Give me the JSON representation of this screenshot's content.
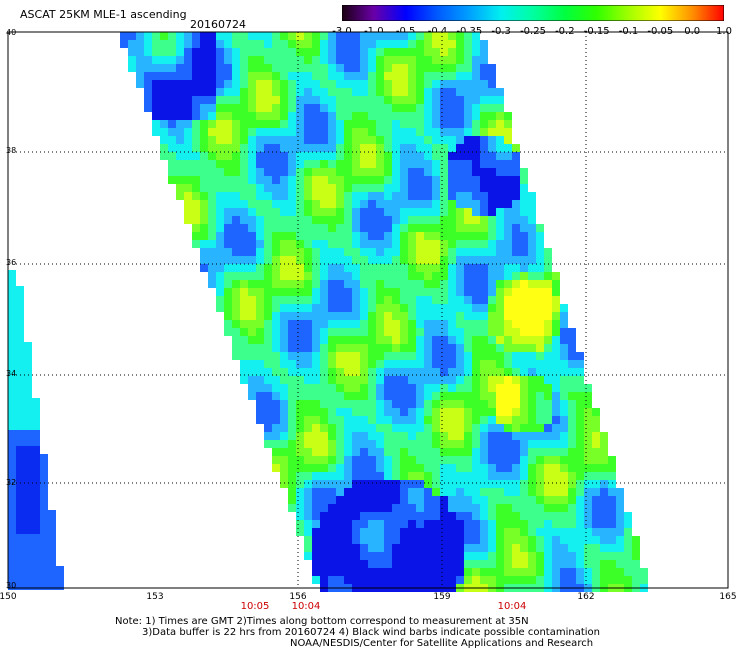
{
  "header": {
    "title": "ASCAT 25KM MLE-1 ascending",
    "date": "20160724"
  },
  "colorbar": {
    "labels": [
      "-3.0",
      "-1.0",
      "-0.5",
      "-0.4",
      "-0.35",
      "-0.3",
      "-0.25",
      "-0.2",
      "-0.15",
      "-0.1",
      "-0.05",
      "0.0",
      "1.0"
    ],
    "colors": [
      "#1a0010",
      "#6a00a8",
      "#0000ff",
      "#005aff",
      "#00a0ff",
      "#00f0f0",
      "#00ffa0",
      "#00ff40",
      "#30ff00",
      "#a0ff00",
      "#ffff00",
      "#ff9000",
      "#ff0000"
    ]
  },
  "map": {
    "lat_labels": [
      "40",
      "38",
      "36",
      "34",
      "32",
      "30"
    ],
    "lon_labels": [
      "150",
      "153",
      "156",
      "159",
      "162",
      "165"
    ],
    "swath_times": [
      "10:05",
      "10:04",
      "10:04"
    ]
  },
  "notes": {
    "line1": "Note: 1) Times are GMT 2)Times along bottom correspond to measurement at 35N",
    "line2": "3)Data buffer is 22 hrs from 20160724 4) Black wind barbs indicate possible contamination",
    "line3": "NOAA/NESDIS/Center for Satellite Applications and Research"
  }
}
